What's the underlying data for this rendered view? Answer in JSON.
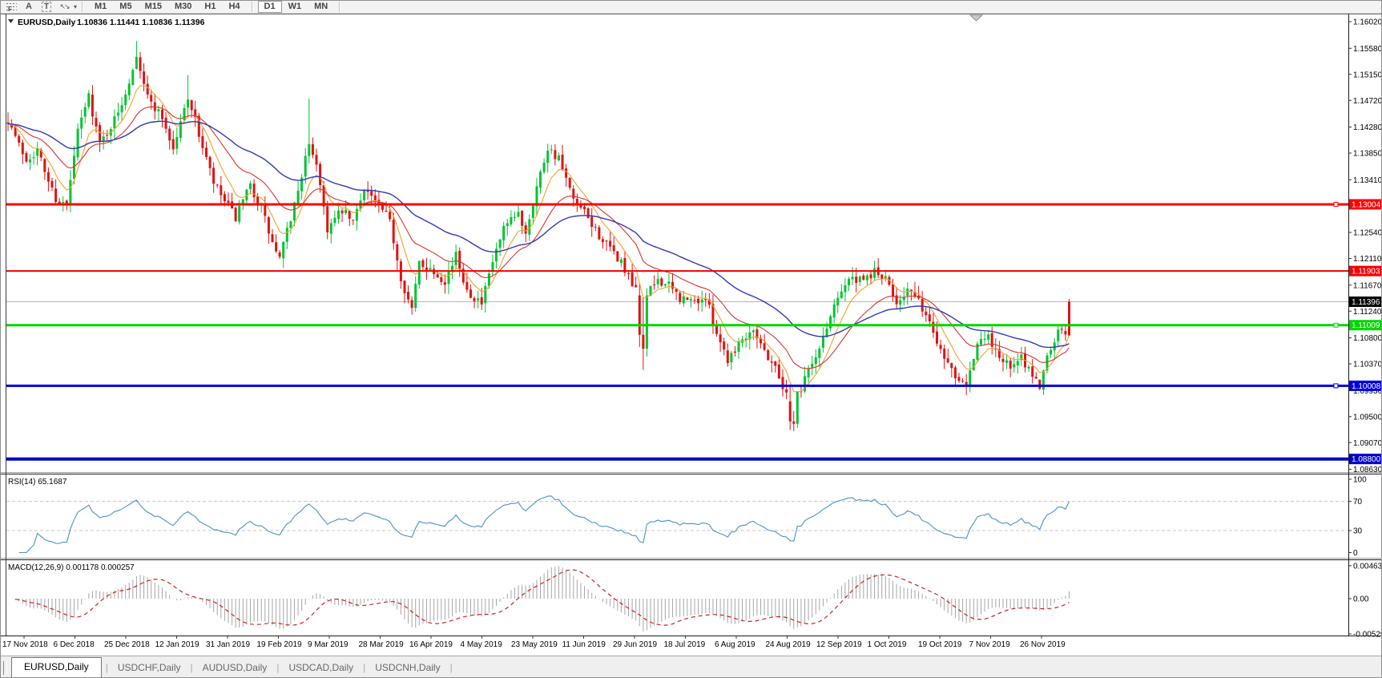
{
  "toolbar": {
    "icons": [
      {
        "name": "fibonacci-icon",
        "glyph": "F"
      },
      {
        "name": "text-icon",
        "glyph": "A"
      },
      {
        "name": "text-label-icon",
        "glyph": "T"
      },
      {
        "name": "arrows-icon",
        "glyph": "↖↘"
      }
    ],
    "timeframes": [
      "M1",
      "M5",
      "M15",
      "M30",
      "H1",
      "H4",
      "D1",
      "W1",
      "MN"
    ],
    "active_timeframe": "D1"
  },
  "chart_data": {
    "type": "candlestick",
    "title": {
      "symbol": "EURUSD,Daily",
      "ohlc": "1.10836 1.11441 1.10836 1.11396"
    },
    "ohlc_display": {
      "open": "1.10836",
      "high": "1.11441",
      "low": "1.10836",
      "close": "1.11396"
    },
    "candle_count": 290,
    "colors": {
      "up": "#00c432",
      "down": "#e01212",
      "background": "#ffffff",
      "current_price_line": "#b4b4b4"
    },
    "y_axis": {
      "top": 1.1602,
      "bottom": 1.0863,
      "ticks": [
        "1.16020",
        "1.15580",
        "1.15150",
        "1.14720",
        "1.14280",
        "1.13850",
        "1.13410",
        "1.12980",
        "1.12540",
        "1.12110",
        "1.11670",
        "1.11240",
        "1.10800",
        "1.10370",
        "1.09930",
        "1.09500",
        "1.09070",
        "1.08630"
      ]
    },
    "x_axis": {
      "labels": [
        "17 Nov 2018",
        "6 Dec 2018",
        "25 Dec 2018",
        "12 Jan 2019",
        "31 Jan 2019",
        "19 Feb 2019",
        "9 Mar 2019",
        "28 Mar 2019",
        "16 Apr 2019",
        "4 May 2019",
        "23 May 2019",
        "11 Jun 2019",
        "29 Jun 2019",
        "18 Jul 2019",
        "6 Aug 2019",
        "24 Aug 2019",
        "12 Sep 2019",
        "1 Oct 2019",
        "19 Oct 2019",
        "7 Nov 2019",
        "26 Nov 2019"
      ]
    },
    "price_path_anchors": [
      [
        0,
        1.1441
      ],
      [
        3,
        1.1398
      ],
      [
        5,
        1.1375
      ],
      [
        8,
        1.139
      ],
      [
        10,
        1.1355
      ],
      [
        13,
        1.131
      ],
      [
        16,
        1.1297
      ],
      [
        19,
        1.142
      ],
      [
        22,
        1.148
      ],
      [
        25,
        1.14
      ],
      [
        28,
        1.143
      ],
      [
        30,
        1.145
      ],
      [
        33,
        1.1505
      ],
      [
        35,
        1.155
      ],
      [
        38,
        1.1477
      ],
      [
        42,
        1.1445
      ],
      [
        45,
        1.139
      ],
      [
        49,
        1.148
      ],
      [
        53,
        1.1395
      ],
      [
        56,
        1.1335
      ],
      [
        59,
        1.1305
      ],
      [
        62,
        1.1278
      ],
      [
        66,
        1.133
      ],
      [
        69,
        1.1295
      ],
      [
        72,
        1.1235
      ],
      [
        74,
        1.121
      ],
      [
        78,
        1.13
      ],
      [
        82,
        1.14
      ],
      [
        84,
        1.137
      ],
      [
        87,
        1.126
      ],
      [
        91,
        1.129
      ],
      [
        94,
        1.127
      ],
      [
        97,
        1.133
      ],
      [
        100,
        1.1305
      ],
      [
        104,
        1.1272
      ],
      [
        107,
        1.118
      ],
      [
        110,
        1.1125
      ],
      [
        112,
        1.1205
      ],
      [
        116,
        1.119
      ],
      [
        119,
        1.1175
      ],
      [
        122,
        1.1215
      ],
      [
        125,
        1.116
      ],
      [
        129,
        1.1135
      ],
      [
        132,
        1.1205
      ],
      [
        135,
        1.1258
      ],
      [
        139,
        1.1285
      ],
      [
        141,
        1.1255
      ],
      [
        144,
        1.133
      ],
      [
        147,
        1.1395
      ],
      [
        150,
        1.1375
      ],
      [
        154,
        1.1305
      ],
      [
        157,
        1.1285
      ],
      [
        160,
        1.1258
      ],
      [
        163,
        1.1232
      ],
      [
        167,
        1.1205
      ],
      [
        170,
        1.1165
      ],
      [
        172,
        1.115
      ],
      [
        174,
        1.115
      ],
      [
        177,
        1.1177
      ],
      [
        180,
        1.1165
      ],
      [
        183,
        1.1145
      ],
      [
        186,
        1.114
      ],
      [
        190,
        1.1145
      ],
      [
        193,
        1.109
      ],
      [
        196,
        1.1045
      ],
      [
        199,
        1.1072
      ],
      [
        203,
        1.1098
      ],
      [
        206,
        1.1058
      ],
      [
        209,
        1.1032
      ],
      [
        212,
        1.0985
      ],
      [
        214,
        1.0938
      ],
      [
        217,
        1.1019
      ],
      [
        220,
        1.1045
      ],
      [
        223,
        1.1098
      ],
      [
        226,
        1.1152
      ],
      [
        229,
        1.1177
      ],
      [
        233,
        1.1172
      ],
      [
        236,
        1.119
      ],
      [
        239,
        1.1175
      ],
      [
        242,
        1.114
      ],
      [
        245,
        1.116
      ],
      [
        249,
        1.113
      ],
      [
        252,
        1.109
      ],
      [
        255,
        1.105
      ],
      [
        258,
        1.102
      ],
      [
        261,
        1.1008
      ],
      [
        264,
        1.107
      ],
      [
        267,
        1.108
      ],
      [
        270,
        1.105
      ],
      [
        273,
        1.103
      ],
      [
        276,
        1.1045
      ],
      [
        279,
        1.102
      ],
      [
        281,
        1.1
      ],
      [
        283,
        1.105
      ],
      [
        285,
        1.108
      ],
      [
        287,
        1.1095
      ],
      [
        288,
        1.1084
      ],
      [
        289,
        1.11396
      ]
    ],
    "special_candles": [
      {
        "i": 35,
        "h": 1.157
      },
      {
        "i": 49,
        "h": 1.1514
      },
      {
        "i": 82,
        "o": 1.138,
        "c": 1.14,
        "h": 1.1475,
        "l": 1.1368
      },
      {
        "i": 172,
        "o": 1.115,
        "c": 1.1085,
        "l": 1.1065
      },
      {
        "i": 173,
        "o": 1.1085,
        "c": 1.1062,
        "l": 1.1027
      },
      {
        "i": 174,
        "o": 1.1062,
        "c": 1.115,
        "h": 1.1162
      },
      {
        "i": 213,
        "o": 1.0975,
        "c": 1.0942,
        "l": 1.0928
      },
      {
        "i": 214,
        "o": 1.0942,
        "c": 1.0938,
        "l": 1.0926
      },
      {
        "i": 215,
        "o": 1.0938,
        "c": 1.0992
      },
      {
        "i": 289,
        "o": 1.10836,
        "h": 1.11441,
        "l": 1.10836,
        "c": 1.11396,
        "force": "down"
      }
    ],
    "horizontal_levels": [
      {
        "price": 1.13004,
        "text": "1.13004",
        "color": "#ff0000",
        "width": 3,
        "handle": true
      },
      {
        "price": 1.11903,
        "text": "1.11903",
        "color": "#f40000",
        "width": 2,
        "handle": false
      },
      {
        "price": 1.11009,
        "text": "1.11009",
        "color": "#00d600",
        "width": 3,
        "handle": true
      },
      {
        "price": 1.10008,
        "text": "1.10008",
        "color": "#0000e0",
        "width": 3,
        "handle": true
      },
      {
        "price": 1.088,
        "text": "1.08800",
        "color": "#0000c8",
        "width": 4,
        "handle": false
      }
    ],
    "current_price": {
      "price": 1.11396,
      "text": "1.11396",
      "label_bg": "#000000"
    },
    "moving_averages": [
      {
        "name": "fast",
        "period": 8,
        "color": "#f0a32c"
      },
      {
        "name": "medium",
        "period": 21,
        "color": "#d83434"
      },
      {
        "name": "slow",
        "period": 50,
        "color": "#3038b8"
      }
    ],
    "indicators": [
      {
        "name": "RSI",
        "label": "RSI(14) 65.1687",
        "period": 14,
        "value": 65.1687,
        "axis_levels": [
          {
            "v": 100,
            "t": "100"
          },
          {
            "v": 70,
            "t": "70"
          },
          {
            "v": 30,
            "t": "30"
          },
          {
            "v": 0,
            "t": "0"
          }
        ],
        "dashed_levels": [
          70,
          30
        ],
        "line_color": "#4a90d2"
      },
      {
        "name": "MACD",
        "label": "MACD(12,26,9) 0.001178 0.000257",
        "fast": 12,
        "slow": 26,
        "signal_period": 9,
        "value": 0.001178,
        "signal_value": 0.000257,
        "axis_ticks": [
          {
            "v": 0.00463,
            "t": "0.00463"
          },
          {
            "v": 0,
            "t": "0.00"
          },
          {
            "v": -0.00529,
            "t": "-0.00529"
          }
        ],
        "hist_color": "#a6a6a6",
        "signal_color": "#cc2222"
      }
    ]
  },
  "tabs": [
    {
      "label": "EURUSD,Daily",
      "active": true
    },
    {
      "label": "USDCHF,Daily",
      "active": false
    },
    {
      "label": "AUDUSD,Daily",
      "active": false
    },
    {
      "label": "USDCAD,Daily",
      "active": false
    },
    {
      "label": "USDCNH,Daily",
      "active": false
    }
  ]
}
